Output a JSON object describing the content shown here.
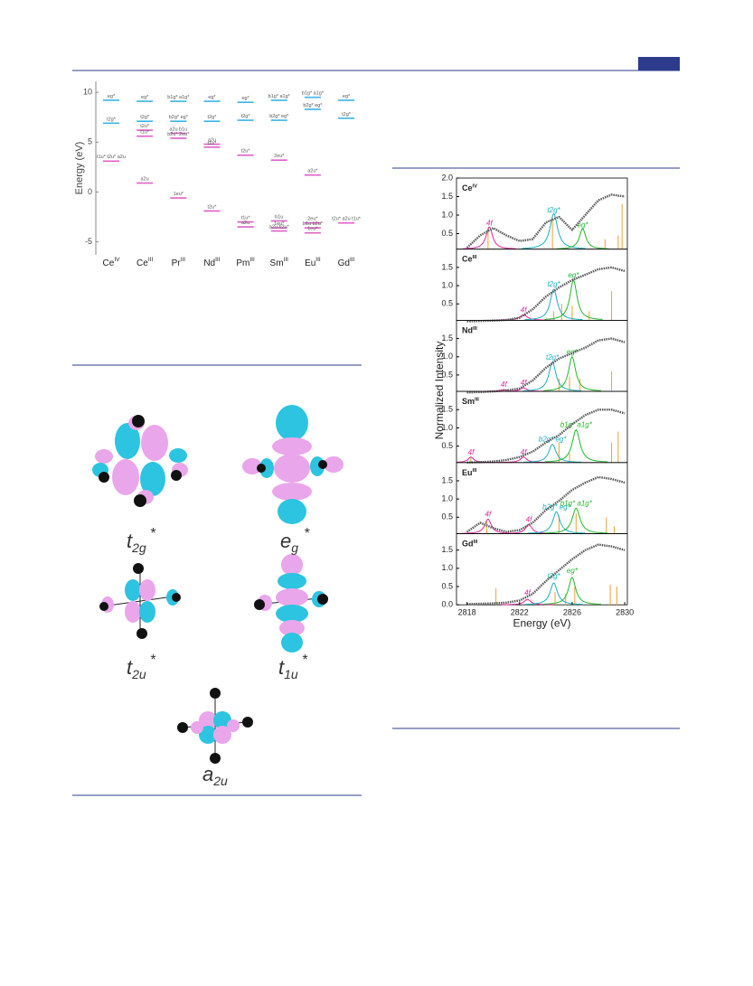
{
  "energy_diagram": {
    "y_label": "Energy (eV)",
    "ylim": [
      -6.3,
      11.1
    ],
    "yticks": [
      10,
      5,
      0,
      -5
    ],
    "columns": [
      {
        "element": "Ce",
        "oxidation": "IV",
        "levels": [
          {
            "value": 9.2,
            "color": "#3cb4e6",
            "label": "eg*"
          },
          {
            "value": 6.9,
            "color": "#3cb4e6",
            "label": "t2g*"
          },
          {
            "value": 3.1,
            "color": "#e060c8",
            "label": "t1u* t2u* a2u"
          }
        ]
      },
      {
        "element": "Ce",
        "oxidation": "III",
        "levels": [
          {
            "value": 9.1,
            "color": "#3cb4e6",
            "label": "eg*"
          },
          {
            "value": 7.1,
            "color": "#3cb4e6",
            "label": "t2g*"
          },
          {
            "value": 6.2,
            "color": "#e060c8",
            "label": "t2u*"
          },
          {
            "value": 5.6,
            "color": "#e060c8",
            "label": "t1u*"
          },
          {
            "value": 0.9,
            "color": "#e060c8",
            "label": "a2u"
          }
        ]
      },
      {
        "element": "Pr",
        "oxidation": "III",
        "levels": [
          {
            "value": 9.1,
            "color": "#3cb4e6",
            "label": "b1g* a1g*"
          },
          {
            "value": 7.1,
            "color": "#3cb4e6",
            "label": "b2g* eg*"
          },
          {
            "value": 5.9,
            "color": "#e060c8",
            "label": "a2u b1u"
          },
          {
            "value": 5.4,
            "color": "#e060c8",
            "label": "b2u* 2eu*"
          },
          {
            "value": -0.6,
            "color": "#e060c8",
            "label": "1eu*"
          }
        ]
      },
      {
        "element": "Nd",
        "oxidation": "III",
        "levels": [
          {
            "value": 9.1,
            "color": "#3cb4e6",
            "label": "eg*"
          },
          {
            "value": 7.1,
            "color": "#3cb4e6",
            "label": "t2g*"
          },
          {
            "value": 4.8,
            "color": "#e060c8",
            "label": "a2u"
          },
          {
            "value": 4.5,
            "color": "#e060c8",
            "label": "t1u*"
          },
          {
            "value": -1.9,
            "color": "#e060c8",
            "label": "t2u*"
          }
        ]
      },
      {
        "element": "Pm",
        "oxidation": "III",
        "levels": [
          {
            "value": 9.0,
            "color": "#3cb4e6",
            "label": "eg*"
          },
          {
            "value": 7.2,
            "color": "#3cb4e6",
            "label": "t2g*"
          },
          {
            "value": 3.7,
            "color": "#e060c8",
            "label": "t2u*"
          },
          {
            "value": -3.0,
            "color": "#e060c8",
            "label": "t1u*"
          },
          {
            "value": -3.5,
            "color": "#e060c8",
            "label": "a2u"
          }
        ]
      },
      {
        "element": "Sm",
        "oxidation": "III",
        "levels": [
          {
            "value": 9.2,
            "color": "#3cb4e6",
            "label": "b1g* a1g*"
          },
          {
            "value": 7.2,
            "color": "#3cb4e6",
            "label": "b2g* eg*"
          },
          {
            "value": 3.2,
            "color": "#e060c8",
            "label": "2eu*"
          },
          {
            "value": -2.9,
            "color": "#e060c8",
            "label": "b1u"
          },
          {
            "value": -3.6,
            "color": "#e060c8",
            "label": "1eu*"
          },
          {
            "value": -3.9,
            "color": "#e060c8",
            "label": "a2u b2u*"
          }
        ]
      },
      {
        "element": "Eu",
        "oxidation": "III",
        "levels": [
          {
            "value": 9.5,
            "color": "#3cb4e6",
            "label": "b1g* a1g*"
          },
          {
            "value": 8.3,
            "color": "#3cb4e6",
            "label": "b2g* eg*"
          },
          {
            "value": 1.7,
            "color": "#e060c8",
            "label": "a2u*"
          },
          {
            "value": -3.1,
            "color": "#e060c8",
            "label": "2eu*"
          },
          {
            "value": -3.6,
            "color": "#e060c8",
            "label": "b1u b2u*"
          },
          {
            "value": -4.1,
            "color": "#e060c8",
            "label": "1eu*"
          }
        ]
      },
      {
        "element": "Gd",
        "oxidation": "III",
        "levels": [
          {
            "value": 9.2,
            "color": "#3cb4e6",
            "label": "eg*"
          },
          {
            "value": 7.4,
            "color": "#3cb4e6",
            "label": "t2g*"
          },
          {
            "value": -3.1,
            "color": "#e060c8",
            "label": "t2u* a2u t1u*"
          }
        ]
      }
    ]
  },
  "orbitals": [
    {
      "base": "t",
      "sub": "2g",
      "sup": "*"
    },
    {
      "base": "e",
      "sub": "g",
      "sup": "*"
    },
    {
      "base": "t",
      "sub": "2u",
      "sup": "*"
    },
    {
      "base": "t",
      "sub": "1u",
      "sup": "*"
    },
    {
      "base": "a",
      "sub": "2u"
    }
  ],
  "spectra": {
    "y_label": "Normalized Intensity",
    "x_label": "Energy (eV)",
    "xlim": [
      2817.2,
      2830.2
    ],
    "xticks": [
      2818,
      2822,
      2826,
      2830
    ],
    "x": [
      2818,
      2819,
      2820,
      2821,
      2822,
      2823,
      2824,
      2825,
      2826,
      2827,
      2828,
      2829,
      2830
    ],
    "panels": [
      {
        "element": "Ce",
        "oxidation": "IV",
        "ylim": [
          0.08,
          2.0
        ],
        "yticks": [
          {
            "value": 2,
            "label": "2.0"
          },
          1.5,
          {
            "value": 1,
            "label": "1.0"
          },
          0.5
        ],
        "values": [
          0.12,
          0.45,
          0.65,
          0.45,
          0.3,
          0.35,
          0.8,
          0.95,
          0.6,
          1.0,
          1.4,
          1.55,
          1.5
        ],
        "peaks": [
          {
            "label": "4f",
            "color": "#e0249b",
            "center": 2819.7,
            "height": 0.6,
            "width": 0.5
          },
          {
            "label": "t2g*",
            "color": "#1ab0c0",
            "center": 2824.6,
            "height": 0.95,
            "width": 0.6
          },
          {
            "label": "eg*",
            "color": "#22b82a",
            "center": 2826.8,
            "height": 0.55,
            "width": 0.5
          }
        ],
        "sticks": {
          "x": [
            2819.6,
            2824.5,
            2828.5,
            2829.5,
            2829.8
          ],
          "heights": [
            0.55,
            0.85,
            0.35,
            0.45,
            1.3
          ]
        }
      },
      {
        "element": "Ce",
        "oxidation": "III",
        "ylim": [
          0.05,
          2.0
        ],
        "yticks": [
          1.5,
          {
            "value": 1,
            "label": "1.0"
          },
          0.5
        ],
        "values": [
          0.02,
          0.03,
          0.04,
          0.06,
          0.12,
          0.35,
          0.7,
          0.95,
          1.15,
          1.3,
          1.45,
          1.5,
          1.4
        ],
        "peaks": [
          {
            "label": "4f",
            "color": "#e0249b",
            "center": 2822.3,
            "height": 0.15,
            "width": 0.6
          },
          {
            "label": "t2g*",
            "color": "#1ab0c0",
            "center": 2824.6,
            "height": 0.85,
            "width": 0.55
          },
          {
            "label": "eg*",
            "color": "#22b82a",
            "center": 2826.1,
            "height": 1.1,
            "width": 0.55
          }
        ],
        "sticks": {
          "x": [
            2824.6,
            2825.2,
            2826,
            2827.3,
            2829
          ],
          "heights": [
            0.3,
            0.5,
            0.45,
            0.3,
            0.85
          ]
        }
      },
      {
        "element": "Nd",
        "oxidation": "III",
        "ylim": [
          0.05,
          2.0
        ],
        "yticks": [
          1.5,
          {
            "value": 1,
            "label": "1.0"
          },
          0.5
        ],
        "values": [
          0.02,
          0.03,
          0.05,
          0.08,
          0.13,
          0.35,
          0.7,
          0.95,
          1.1,
          1.25,
          1.45,
          1.5,
          1.4
        ],
        "peaks": [
          {
            "label": "4f",
            "color": "#e0249b",
            "center": 2820.8,
            "height": 0.05,
            "width": 0.5
          },
          {
            "label": "4f",
            "color": "#e0249b",
            "center": 2822.3,
            "height": 0.1,
            "width": 0.5
          },
          {
            "label": "t2g*",
            "color": "#1ab0c0",
            "center": 2824.5,
            "height": 0.8,
            "width": 0.55
          },
          {
            "label": "eg*",
            "color": "#22b82a",
            "center": 2826,
            "height": 0.95,
            "width": 0.55
          }
        ],
        "sticks": {
          "x": [
            2825,
            2825.8,
            2826.6,
            2829
          ],
          "heights": [
            0.4,
            0.45,
            0.4,
            0.6
          ]
        }
      },
      {
        "element": "Sm",
        "oxidation": "III",
        "ylim": [
          0.05,
          2.0
        ],
        "yticks": [
          1.5,
          {
            "value": 1,
            "label": "1.0"
          },
          0.5
        ],
        "values": [
          0.05,
          0.06,
          0.08,
          0.12,
          0.2,
          0.35,
          0.6,
          0.8,
          1.1,
          1.35,
          1.5,
          1.5,
          1.4
        ],
        "peaks": [
          {
            "label": "4f",
            "color": "#e0249b",
            "center": 2818.3,
            "height": 0.15,
            "width": 0.45
          },
          {
            "label": "4f",
            "color": "#e0249b",
            "center": 2822.3,
            "height": 0.15,
            "width": 0.5
          },
          {
            "label": "b2g* eg*",
            "color": "#1ab0c0",
            "center": 2824.5,
            "height": 0.5,
            "width": 0.55
          },
          {
            "label": "b1g* a1g*",
            "color": "#22b82a",
            "center": 2826.3,
            "height": 0.9,
            "width": 0.6
          }
        ],
        "sticks": {
          "x": [
            2818.3,
            2825,
            2825.8,
            2829,
            2829.5
          ],
          "heights": [
            0.2,
            0.6,
            0.3,
            0.6,
            0.9
          ]
        }
      },
      {
        "element": "Eu",
        "oxidation": "III",
        "ylim": [
          0.05,
          2.0
        ],
        "yticks": [
          1.5,
          {
            "value": 1,
            "label": "1.0"
          },
          0.5
        ],
        "values": [
          0.1,
          0.35,
          0.2,
          0.1,
          0.15,
          0.35,
          0.7,
          0.95,
          1.25,
          1.45,
          1.6,
          1.55,
          1.45
        ],
        "peaks": [
          {
            "label": "4f",
            "color": "#e0249b",
            "center": 2819.6,
            "height": 0.4,
            "width": 0.5
          },
          {
            "label": "4f",
            "color": "#e0249b",
            "center": 2822.7,
            "height": 0.25,
            "width": 0.5
          },
          {
            "label": "b2g* eg*",
            "color": "#1ab0c0",
            "center": 2824.8,
            "height": 0.6,
            "width": 0.55
          },
          {
            "label": "b1g* a1g*",
            "color": "#22b82a",
            "center": 2826.3,
            "height": 0.7,
            "width": 0.6
          }
        ],
        "sticks": {
          "x": [
            2819.5,
            2825,
            2826.3,
            2828.6,
            2829.2
          ],
          "heights": [
            0.4,
            0.55,
            0.6,
            0.5,
            0.25
          ]
        }
      },
      {
        "element": "Gd",
        "oxidation": "III",
        "ylim": [
          0,
          1.95
        ],
        "yticks": [
          1.5,
          {
            "value": 1,
            "label": "1.0"
          },
          0.5,
          {
            "value": 0,
            "label": "0.0"
          }
        ],
        "values": [
          0.02,
          0.03,
          0.04,
          0.06,
          0.12,
          0.3,
          0.65,
          0.95,
          1.25,
          1.5,
          1.65,
          1.6,
          1.5
        ],
        "peaks": [
          {
            "label": "4f",
            "color": "#e0249b",
            "center": 2822.6,
            "height": 0.15,
            "width": 0.5
          },
          {
            "label": "t2g*",
            "color": "#1ab0c0",
            "center": 2824.6,
            "height": 0.6,
            "width": 0.55
          },
          {
            "label": "eg*",
            "color": "#22b82a",
            "center": 2826,
            "height": 0.75,
            "width": 0.55
          }
        ],
        "sticks": {
          "x": [
            2820.2,
            2824.7,
            2825.5,
            2826.2,
            2828.9,
            2829.4
          ],
          "heights": [
            0.45,
            0.35,
            0.3,
            0.5,
            0.55,
            0.5
          ]
        }
      }
    ]
  }
}
